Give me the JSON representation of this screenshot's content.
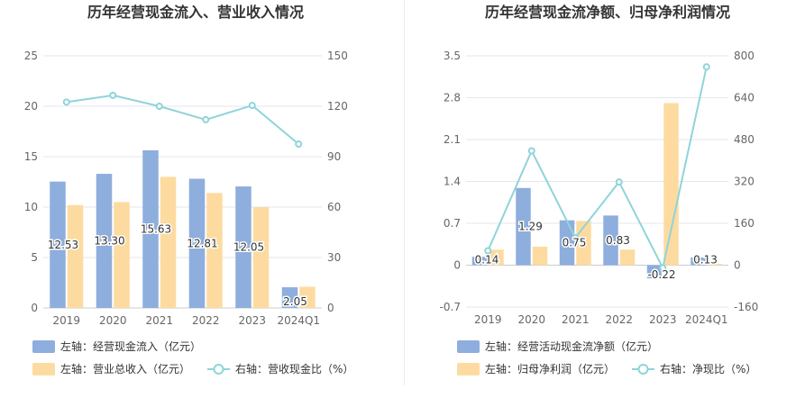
{
  "chart_data": [
    {
      "type": "bar",
      "title": "历年经营现金流入、营业收入情况",
      "categories": [
        "2019",
        "2020",
        "2021",
        "2022",
        "2023",
        "2024Q1"
      ],
      "left_axis": {
        "ylim": [
          0,
          25
        ],
        "ticks": [
          "0",
          "5",
          "10",
          "15",
          "20",
          "25"
        ]
      },
      "right_axis": {
        "ylim": [
          0,
          150
        ],
        "ticks": [
          "0",
          "30",
          "60",
          "90",
          "120",
          "150"
        ]
      },
      "series": [
        {
          "name": "左轴：经营现金流入（亿元）",
          "kind": "bar",
          "axis": "left",
          "color": "#8eaedd",
          "values": [
            12.53,
            13.3,
            15.63,
            12.81,
            12.05,
            2.05
          ],
          "labels": [
            "12.53",
            "13.30",
            "15.63",
            "12.81",
            "12.05",
            "2.05"
          ]
        },
        {
          "name": "左轴：营业总收入（亿元）",
          "kind": "bar",
          "axis": "left",
          "color": "#fddba0",
          "values": [
            10.2,
            10.5,
            13.0,
            11.4,
            10.0,
            2.1
          ]
        },
        {
          "name": "右轴：营收现金比（%）",
          "kind": "line",
          "axis": "right",
          "color": "#8fd4d9",
          "values": [
            122.5,
            126.5,
            120.0,
            112.0,
            120.5,
            97.5
          ]
        }
      ],
      "legend": "bottom"
    },
    {
      "type": "bar",
      "title": "历年经营现金流净额、归母净利润情况",
      "categories": [
        "2019",
        "2020",
        "2021",
        "2022",
        "2023",
        "2024Q1"
      ],
      "left_axis": {
        "ylim": [
          -0.7,
          3.5
        ],
        "ticks": [
          "-0.7",
          "0",
          "0.7",
          "1.4",
          "2.1",
          "2.8",
          "3.5"
        ]
      },
      "right_axis": {
        "ylim": [
          -160,
          800
        ],
        "ticks": [
          "-160",
          "0",
          "160",
          "320",
          "480",
          "640",
          "800"
        ]
      },
      "series": [
        {
          "name": "左轴：经营活动现金流净额（亿元）",
          "kind": "bar",
          "axis": "left",
          "color": "#8eaedd",
          "values": [
            0.14,
            1.29,
            0.75,
            0.83,
            -0.22,
            0.13
          ],
          "labels": [
            "0.14",
            "1.29",
            "0.75",
            "0.83",
            "-0.22",
            "0.13"
          ]
        },
        {
          "name": "左轴：归母净利润（亿元）",
          "kind": "bar",
          "axis": "left",
          "color": "#fddba0",
          "values": [
            0.26,
            0.31,
            0.74,
            0.26,
            2.71,
            0.02
          ]
        },
        {
          "name": "右轴：净现比（%）",
          "kind": "line",
          "axis": "right",
          "color": "#8fd4d9",
          "values": [
            55,
            437,
            105,
            318,
            -10,
            758
          ]
        }
      ],
      "legend": "bottom"
    }
  ]
}
